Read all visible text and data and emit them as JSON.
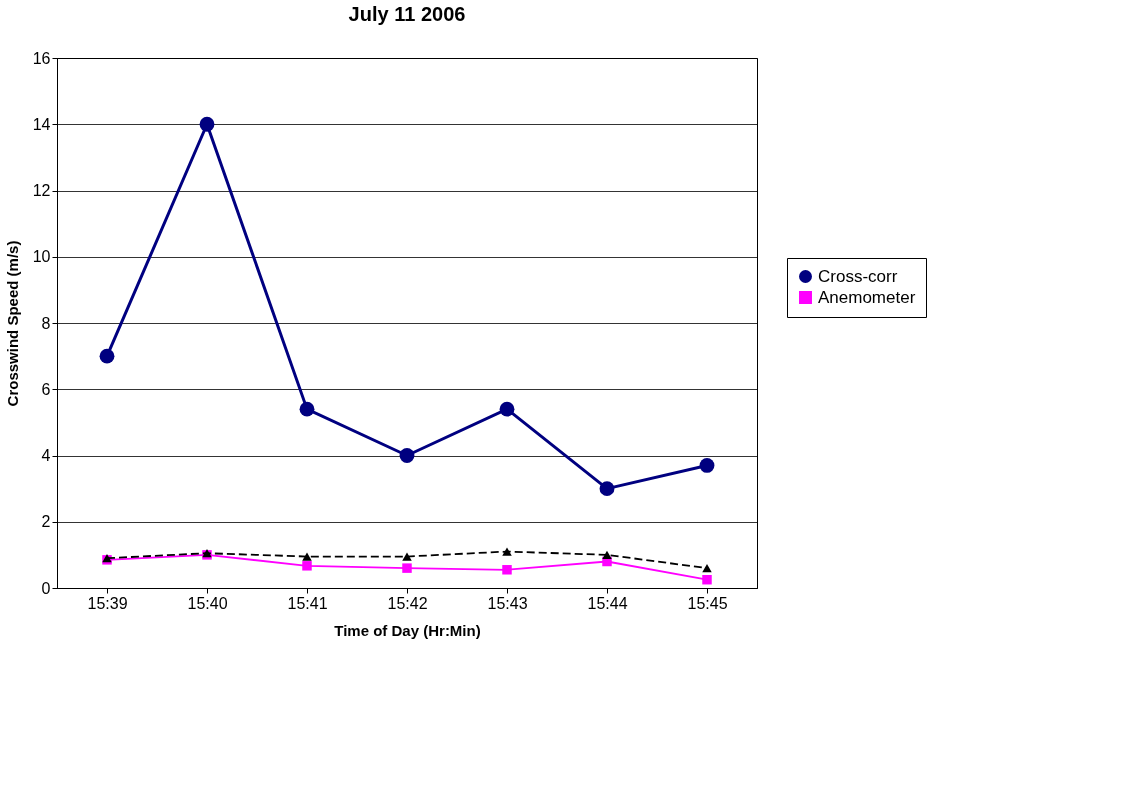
{
  "chart_data": {
    "type": "line",
    "title": "July 11 2006",
    "xlabel": "Time of Day (Hr:Min)",
    "ylabel": "Crosswind Speed (m/s)",
    "categories": [
      "15:39",
      "15:40",
      "15:41",
      "15:42",
      "15:43",
      "15:44",
      "15:45"
    ],
    "series": [
      {
        "name": "Cross-corr",
        "color": "#000080",
        "marker": "circle",
        "line_style": "solid",
        "values": [
          7.0,
          14.0,
          5.4,
          4.0,
          5.4,
          3.0,
          3.7
        ]
      },
      {
        "name": "Anemometer",
        "color": "#ff00ff",
        "marker": "square",
        "line_style": "solid",
        "values": [
          0.85,
          1.0,
          0.67,
          0.6,
          0.55,
          0.8,
          0.25
        ]
      },
      {
        "color": "#000000",
        "marker": "triangle",
        "line_style": "dashed",
        "values": [
          0.9,
          1.05,
          0.95,
          0.95,
          1.1,
          1.0,
          0.6
        ]
      }
    ],
    "ylim": [
      0,
      16
    ],
    "yticks": [
      0,
      2,
      4,
      6,
      8,
      10,
      12,
      14,
      16
    ],
    "grid": "y",
    "legend": "right"
  }
}
